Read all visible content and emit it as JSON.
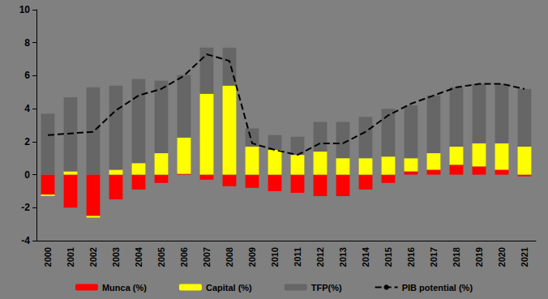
{
  "chart_data": {
    "type": "bar",
    "stacked": true,
    "grid": false,
    "legend": "bottom",
    "categories": [
      "2000",
      "2001",
      "2002",
      "2003",
      "2004",
      "2005",
      "2006",
      "2007",
      "2008",
      "2009",
      "2010",
      "2011",
      "2012",
      "2013",
      "2014",
      "2015",
      "2016",
      "2017",
      "2018",
      "2019",
      "2020",
      "2021"
    ],
    "ylim": [
      -4,
      10
    ],
    "yticks": [
      -4,
      -2,
      0,
      2,
      4,
      6,
      8,
      10
    ],
    "series": [
      {
        "name": "Munca (%)",
        "type": "bar",
        "color": "#ff0000",
        "values": [
          -1.2,
          -2.0,
          -2.5,
          -1.5,
          -0.9,
          -0.5,
          0.05,
          -0.3,
          -0.7,
          -0.8,
          -1.0,
          -1.1,
          -1.3,
          -1.3,
          -0.9,
          -0.5,
          0.2,
          0.3,
          0.6,
          0.5,
          0.3,
          -0.1
        ]
      },
      {
        "name": "Capital (%)",
        "type": "bar",
        "color": "#ffff00",
        "values": [
          -0.1,
          0.2,
          -0.1,
          0.3,
          0.7,
          1.3,
          2.2,
          4.9,
          5.4,
          1.7,
          1.5,
          1.2,
          1.4,
          1.0,
          1.0,
          1.1,
          0.8,
          1.0,
          1.1,
          1.4,
          1.6,
          1.7
        ]
      },
      {
        "name": "TFP(%)",
        "type": "bar",
        "color": "#666666",
        "values": [
          3.7,
          4.5,
          5.3,
          5.1,
          5.1,
          4.4,
          3.8,
          2.8,
          2.3,
          1.1,
          0.9,
          1.1,
          1.8,
          2.2,
          2.5,
          2.9,
          3.2,
          3.5,
          3.6,
          3.6,
          3.6,
          3.5
        ]
      },
      {
        "name": "PIB potential (%)",
        "type": "line",
        "color": "#000000",
        "line_style": "dashed",
        "marker": "none",
        "values": [
          2.4,
          2.5,
          2.6,
          3.9,
          4.8,
          5.2,
          6.0,
          7.3,
          6.9,
          1.9,
          1.5,
          1.2,
          1.9,
          1.9,
          2.6,
          3.6,
          4.3,
          4.8,
          5.3,
          5.5,
          5.5,
          5.2
        ]
      }
    ]
  }
}
